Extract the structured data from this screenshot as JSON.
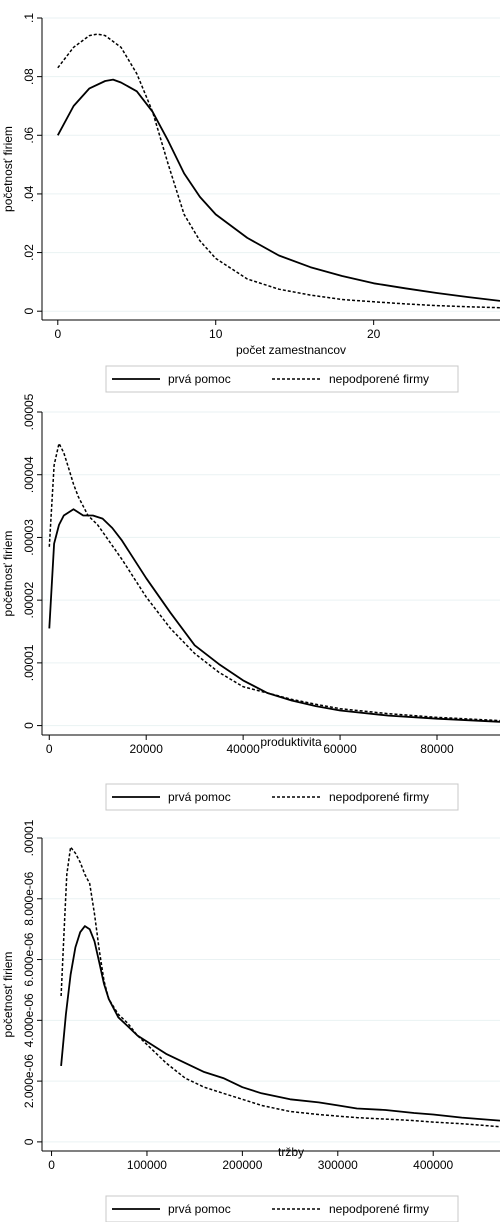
{
  "chart_data": [
    {
      "type": "line",
      "xlabel": "počet zamestnancov",
      "ylabel": "početnosť firiem",
      "xlim": [
        -1,
        28
      ],
      "ylim": [
        -0.003,
        0.1
      ],
      "xticks": [
        {
          "v": 0,
          "label": "0"
        },
        {
          "v": 10,
          "label": "10"
        },
        {
          "v": 20,
          "label": "20"
        }
      ],
      "yticks": [
        {
          "v": 0,
          "label": "0"
        },
        {
          "v": 0.02,
          "label": ".02"
        },
        {
          "v": 0.04,
          "label": ".04"
        },
        {
          "v": 0.06,
          "label": ".06"
        },
        {
          "v": 0.08,
          "label": ".08"
        },
        {
          "v": 0.1,
          "label": ".1"
        }
      ],
      "grid": true,
      "legend": "bottom",
      "series": [
        {
          "name": "prvá pomoc",
          "style": "solid",
          "x": [
            0,
            1,
            2,
            3,
            3.5,
            4,
            5,
            6,
            7,
            8,
            9,
            10,
            12,
            14,
            16,
            18,
            20,
            22,
            24,
            26,
            28
          ],
          "y": [
            0.06,
            0.07,
            0.076,
            0.0785,
            0.079,
            0.078,
            0.075,
            0.068,
            0.058,
            0.047,
            0.039,
            0.033,
            0.025,
            0.019,
            0.015,
            0.012,
            0.0095,
            0.0078,
            0.0062,
            0.0048,
            0.0035
          ]
        },
        {
          "name": "nepodporené firmy",
          "style": "dash",
          "x": [
            0,
            1,
            2,
            2.5,
            3,
            4,
            5,
            6,
            7,
            8,
            9,
            10,
            12,
            14,
            16,
            18,
            20,
            22,
            24,
            26,
            28
          ],
          "y": [
            0.083,
            0.09,
            0.094,
            0.0945,
            0.094,
            0.09,
            0.081,
            0.068,
            0.05,
            0.033,
            0.024,
            0.018,
            0.011,
            0.0075,
            0.0055,
            0.004,
            0.0032,
            0.0025,
            0.0019,
            0.0015,
            0.0012
          ]
        }
      ]
    },
    {
      "type": "line",
      "xlabel": "produktivita",
      "ylabel": "početnosť firiem",
      "xlim": [
        -1500,
        93000
      ],
      "ylim": [
        -1.5e-06,
        5e-05
      ],
      "xticks": [
        {
          "v": 0,
          "label": "0"
        },
        {
          "v": 20000,
          "label": "20000"
        },
        {
          "v": 40000,
          "label": "40000"
        },
        {
          "v": 60000,
          "label": "60000"
        },
        {
          "v": 80000,
          "label": "80000"
        }
      ],
      "yticks": [
        {
          "v": 0,
          "label": "0"
        },
        {
          "v": 1e-05,
          "label": ".00001"
        },
        {
          "v": 2e-05,
          "label": ".00002"
        },
        {
          "v": 3e-05,
          "label": ".00003"
        },
        {
          "v": 4e-05,
          "label": ".00004"
        },
        {
          "v": 5e-05,
          "label": ".00005"
        }
      ],
      "grid": true,
      "legend": "bottom",
      "series": [
        {
          "name": "prvá pomoc",
          "style": "solid",
          "x": [
            0,
            1000,
            2000,
            3000,
            5000,
            7000,
            9000,
            11000,
            13000,
            15000,
            20000,
            25000,
            30000,
            35000,
            40000,
            45000,
            50000,
            55000,
            60000,
            70000,
            80000,
            93000
          ],
          "y": [
            1.55e-05,
            2.9e-05,
            3.2e-05,
            3.35e-05,
            3.45e-05,
            3.35e-05,
            3.35e-05,
            3.3e-05,
            3.15e-05,
            2.95e-05,
            2.35e-05,
            1.8e-05,
            1.28e-05,
            9.8e-06,
            7.2e-06,
            5.2e-06,
            4e-06,
            3.1e-06,
            2.4e-06,
            1.6e-06,
            1.1e-06,
            6e-07
          ]
        },
        {
          "name": "nepodporené firmy",
          "style": "dash",
          "x": [
            0,
            1000,
            2000,
            3000,
            4000,
            5000,
            6000,
            8000,
            10000,
            15000,
            20000,
            25000,
            30000,
            35000,
            40000,
            45000,
            50000,
            55000,
            60000,
            70000,
            80000,
            93000
          ],
          "y": [
            2.85e-05,
            4.15e-05,
            4.5e-05,
            4.35e-05,
            4.1e-05,
            3.85e-05,
            3.65e-05,
            3.35e-05,
            3.2e-05,
            2.65e-05,
            2.05e-05,
            1.55e-05,
            1.15e-05,
            8.5e-06,
            6.2e-06,
            5.2e-06,
            4.2e-06,
            3.4e-06,
            2.7e-06,
            1.9e-06,
            1.3e-06,
            8e-07
          ]
        }
      ]
    },
    {
      "type": "line",
      "xlabel": "tržby",
      "ylabel": "početnosť firiem",
      "xlim": [
        -10000,
        470000
      ],
      "ylim": [
        -3e-07,
        1e-05
      ],
      "xticks": [
        {
          "v": 0,
          "label": "0"
        },
        {
          "v": 100000,
          "label": "100000"
        },
        {
          "v": 200000,
          "label": "200000"
        },
        {
          "v": 300000,
          "label": "300000"
        },
        {
          "v": 400000,
          "label": "400000"
        }
      ],
      "yticks": [
        {
          "v": 0,
          "label": "0"
        },
        {
          "v": 2e-06,
          "label": "2.000e-06"
        },
        {
          "v": 4e-06,
          "label": "4.000e-06"
        },
        {
          "v": 6e-06,
          "label": "6.000e-06"
        },
        {
          "v": 8e-06,
          "label": "8.000e-06"
        },
        {
          "v": 1e-05,
          "label": ".00001"
        }
      ],
      "grid": true,
      "legend": "bottom",
      "series": [
        {
          "name": "prvá pomoc",
          "style": "solid",
          "x": [
            10000,
            15000,
            20000,
            25000,
            30000,
            35000,
            40000,
            45000,
            50000,
            55000,
            60000,
            70000,
            80000,
            90000,
            100000,
            120000,
            140000,
            160000,
            180000,
            200000,
            220000,
            250000,
            280000,
            300000,
            320000,
            350000,
            380000,
            400000,
            430000,
            470000
          ],
          "y": [
            2.5e-06,
            4.2e-06,
            5.5e-06,
            6.4e-06,
            6.9e-06,
            7.1e-06,
            7e-06,
            6.6e-06,
            5.9e-06,
            5.2e-06,
            4.7e-06,
            4.1e-06,
            3.8e-06,
            3.5e-06,
            3.3e-06,
            2.9e-06,
            2.6e-06,
            2.3e-06,
            2.1e-06,
            1.8e-06,
            1.6e-06,
            1.4e-06,
            1.3e-06,
            1.2e-06,
            1.1e-06,
            1.05e-06,
            9.5e-07,
            9e-07,
            8e-07,
            7e-07
          ]
        },
        {
          "name": "nepodporené firmy",
          "style": "dash",
          "x": [
            10000,
            13000,
            16000,
            20000,
            25000,
            30000,
            35000,
            40000,
            45000,
            50000,
            55000,
            60000,
            70000,
            80000,
            90000,
            100000,
            120000,
            140000,
            160000,
            180000,
            200000,
            220000,
            250000,
            280000,
            300000,
            320000,
            350000,
            380000,
            400000,
            430000,
            470000
          ],
          "y": [
            4.8e-06,
            6.8e-06,
            8.8e-06,
            9.7e-06,
            9.5e-06,
            9.2e-06,
            8.8e-06,
            8.5e-06,
            7.5e-06,
            6.3e-06,
            5.3e-06,
            4.7e-06,
            4.2e-06,
            3.9e-06,
            3.5e-06,
            3.2e-06,
            2.6e-06,
            2.1e-06,
            1.8e-06,
            1.6e-06,
            1.4e-06,
            1.2e-06,
            1e-06,
            9e-07,
            8.5e-07,
            8e-07,
            7.5e-07,
            7e-07,
            6.5e-07,
            6e-07,
            5e-07
          ]
        }
      ]
    }
  ]
}
